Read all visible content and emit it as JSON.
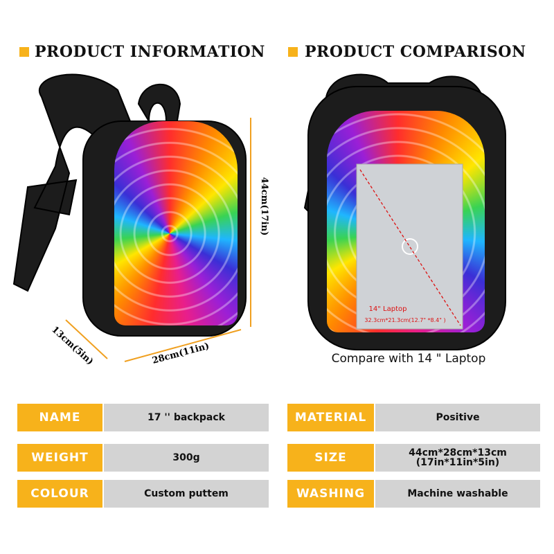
{
  "header": {
    "left_title": "PRODUCT INFORMATION",
    "right_title": "PRODUCT COMPARISON"
  },
  "dimensions": {
    "height": "44cm(17in)",
    "depth": "13cm(5in)",
    "width": "28cm(11in)"
  },
  "laptop": {
    "label": "14\" Laptop",
    "size": "32.3cm*21.3cm(12.7\" *8.4\" )"
  },
  "caption": "Compare with 14 \" Laptop",
  "left_table": {
    "rows": [
      [
        "NAME",
        "17 '' backpack"
      ],
      [
        "WEIGHT",
        "300g"
      ],
      [
        "COLOUR",
        "Custom puttem"
      ]
    ]
  },
  "right_table": {
    "rows": [
      [
        "MATERIAL",
        "Positive"
      ],
      [
        "SIZE",
        "44cm*28cm*13cm",
        "(17in*11in*5in)"
      ],
      [
        "WASHING",
        "Machine washable"
      ]
    ]
  }
}
